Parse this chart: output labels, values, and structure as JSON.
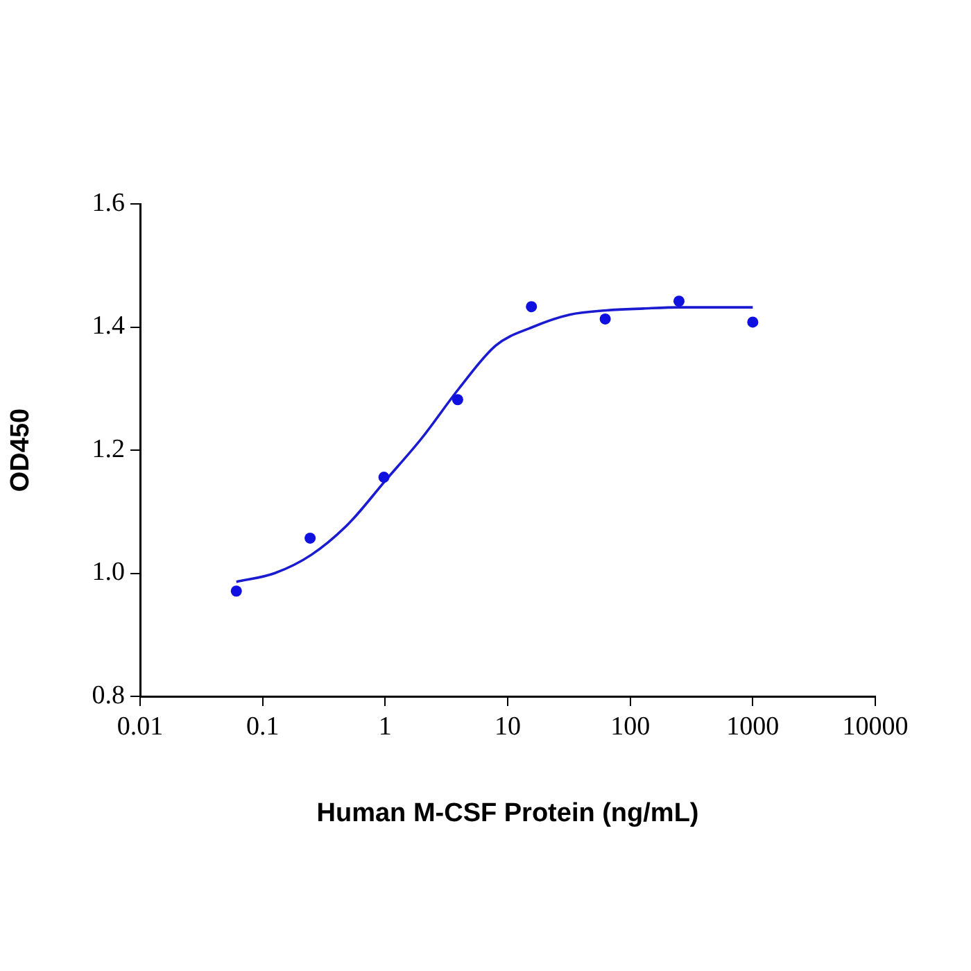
{
  "chart_data": {
    "type": "scatter",
    "xlabel": "Human M-CSF Protein (ng/mL)",
    "ylabel": "OD450",
    "log": "x",
    "legend": false,
    "grid": false,
    "xlim": [
      0.01,
      10000
    ],
    "xticks": [
      0.01,
      0.1,
      1,
      10,
      100,
      1000,
      10000
    ],
    "ylim": [
      0.8,
      1.6
    ],
    "yticks": [
      {
        "value": 0.8,
        "label": "0.8"
      },
      {
        "value": 1.0,
        "label": "1.0"
      },
      {
        "value": 1.2,
        "label": "1.2"
      },
      {
        "value": 1.4,
        "label": "1.4"
      },
      {
        "value": 1.6,
        "label": "1.6"
      }
    ],
    "series": [
      {
        "type": "scatter",
        "color": "#1010e0",
        "marker": "circle",
        "x": [
          0.061,
          0.244,
          0.977,
          3.906,
          15.625,
          62.5,
          250,
          1000
        ],
        "values": [
          0.971,
          1.057,
          1.156,
          1.282,
          1.433,
          1.413,
          1.442,
          1.408
        ]
      },
      {
        "type": "line",
        "color": "#1a1ad0",
        "marker": "none",
        "line_style": "solid",
        "x": [
          0.061,
          0.125,
          0.25,
          0.5,
          1,
          2,
          4,
          8,
          16,
          32,
          64,
          128,
          250,
          500,
          1000
        ],
        "values": [
          0.986,
          1.0,
          1.03,
          1.08,
          1.15,
          1.22,
          1.3,
          1.37,
          1.4,
          1.42,
          1.427,
          1.43,
          1.432,
          1.432,
          1.432
        ]
      }
    ]
  }
}
